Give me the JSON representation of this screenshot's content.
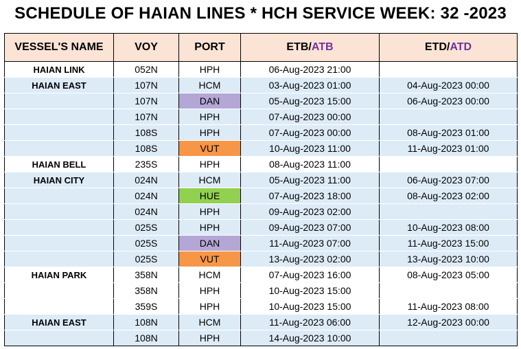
{
  "title": "SCHEDULE OF HAIAN LINES * HCH SERVICE WEEK: 32 -2023",
  "headers": {
    "vessel": "VESSEL'S NAME",
    "voy": "VOY",
    "port": "PORT",
    "etb_prefix": "ETB/",
    "etb_suffix": "ATB",
    "etd_prefix": "ETD/",
    "etd_suffix": "ATD"
  },
  "colors": {
    "header_bg": "#fbe4d5",
    "row_blue": "#ddebf7",
    "atb_atd_text": "#7030a0",
    "port_DAN": "#b4a7d6",
    "port_VUT": "#f79646",
    "port_HUE": "#92d050"
  },
  "rows": [
    {
      "vessel": "HAIAN LINK",
      "voy": "052N",
      "port": "HPH",
      "etb": "06-Aug-2023 21:00",
      "etd": ""
    },
    {
      "vessel": "HAIAN EAST",
      "voy": "107N",
      "port": "HCM",
      "etb": "03-Aug-2023 01:00",
      "etd": "04-Aug-2023 00:00"
    },
    {
      "vessel": "",
      "voy": "107N",
      "port": "DAN",
      "etb": "05-Aug-2023 15:00",
      "etd": "06-Aug-2023 00:00"
    },
    {
      "vessel": "",
      "voy": "107N",
      "port": "HPH",
      "etb": "07-Aug-2023 00:00",
      "etd": ""
    },
    {
      "vessel": "",
      "voy": "108S",
      "port": "HPH",
      "etb": "07-Aug-2023 00:00",
      "etd": "08-Aug-2023 01:00"
    },
    {
      "vessel": "",
      "voy": "108S",
      "port": "VUT",
      "etb": "10-Aug-2023 11:00",
      "etd": "11-Aug-2023 01:00"
    },
    {
      "vessel": "HAIAN BELL",
      "voy": "235S",
      "port": "HPH",
      "etb": "08-Aug-2023 11:00",
      "etd": ""
    },
    {
      "vessel": "HAIAN CITY",
      "voy": "024N",
      "port": "HCM",
      "etb": "05-Aug-2023 11:00",
      "etd": "06-Aug-2023 07:00"
    },
    {
      "vessel": "",
      "voy": "024N",
      "port": "HUE",
      "etb": "07-Aug-2023 18:00",
      "etd": "08-Aug-2023 02:00"
    },
    {
      "vessel": "",
      "voy": "024N",
      "port": "HPH",
      "etb": "09-Aug-2023 02:00",
      "etd": ""
    },
    {
      "vessel": "",
      "voy": "025S",
      "port": "HPH",
      "etb": "09-Aug-2023 07:00",
      "etd": "10-Aug-2023 08:00"
    },
    {
      "vessel": "",
      "voy": "025S",
      "port": "DAN",
      "etb": "11-Aug-2023 07:00",
      "etd": "11-Aug-2023 15:00"
    },
    {
      "vessel": "",
      "voy": "025S",
      "port": "VUT",
      "etb": "13-Aug-2023 02:00",
      "etd": "13-Aug-2023 10:00"
    },
    {
      "vessel": "HAIAN PARK",
      "voy": "358N",
      "port": "HCM",
      "etb": "07-Aug-2023 16:00",
      "etd": "08-Aug-2023 05:00"
    },
    {
      "vessel": "",
      "voy": "358N",
      "port": "HPH",
      "etb": "10-Aug-2023 15:00",
      "etd": ""
    },
    {
      "vessel": "",
      "voy": "359S",
      "port": "HPH",
      "etb": "10-Aug-2023 15:00",
      "etd": "11-Aug-2023 08:00"
    },
    {
      "vessel": "HAIAN EAST",
      "voy": "108N",
      "port": "HCM",
      "etb": "11-Aug-2023 06:00",
      "etd": "12-Aug-2023 00:00"
    },
    {
      "vessel": "",
      "voy": "108N",
      "port": "HPH",
      "etb": "14-Aug-2023 10:00",
      "etd": ""
    }
  ]
}
